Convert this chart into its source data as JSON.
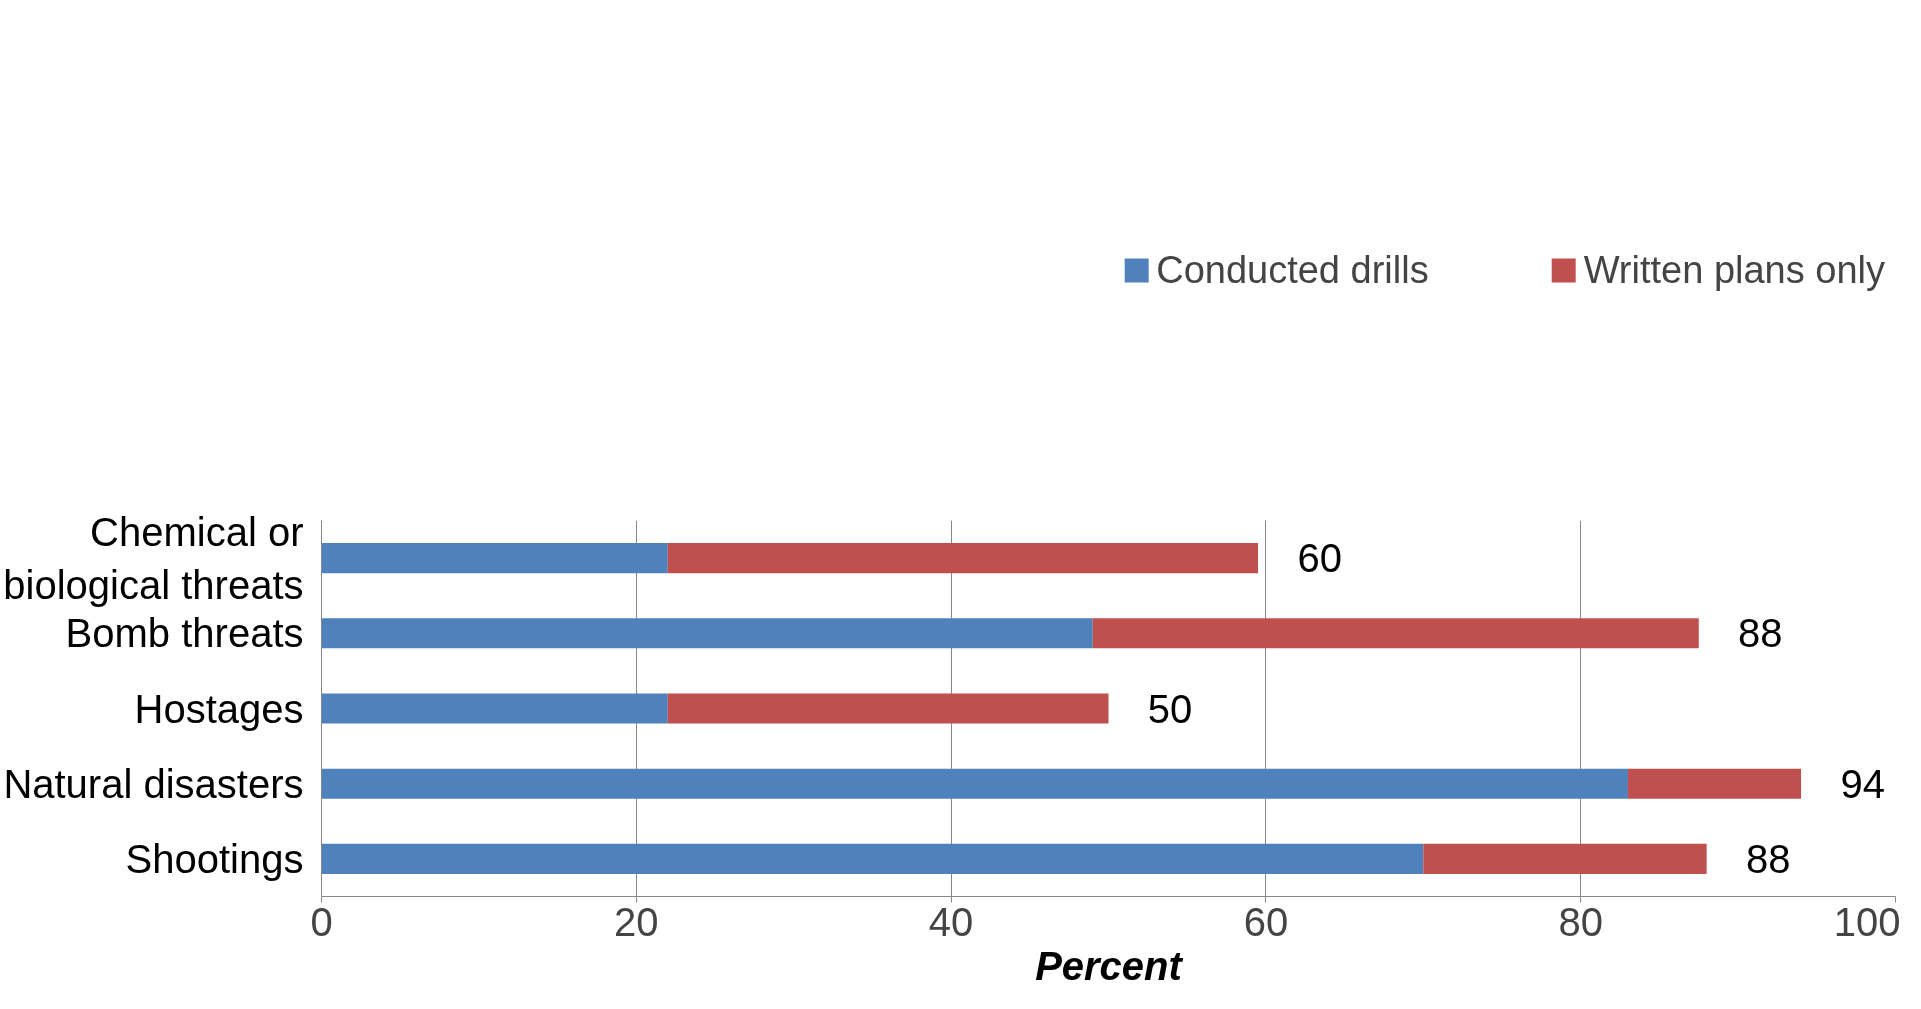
{
  "chart_data": {
    "type": "bar",
    "orientation": "horizontal",
    "stacked": true,
    "xlabel": "Percent",
    "categories": [
      "Chemical or biological threats",
      "Bomb threats",
      "Hostages",
      "Natural disasters",
      "Shootings"
    ],
    "series": [
      {
        "name": "Conducted drills",
        "color": "#4f81bd",
        "values": [
          22,
          49,
          22,
          83,
          70
        ]
      },
      {
        "name": "Written plans only",
        "color": "#c0504d",
        "values": [
          37.5,
          38.5,
          28,
          11,
          18
        ]
      }
    ],
    "totals": [
      "60",
      "88",
      "50",
      "94",
      "88"
    ],
    "xlim": [
      0,
      100
    ],
    "xticks": [
      0,
      20,
      40,
      60,
      80,
      100
    ],
    "grid": "x",
    "legend": "top"
  }
}
